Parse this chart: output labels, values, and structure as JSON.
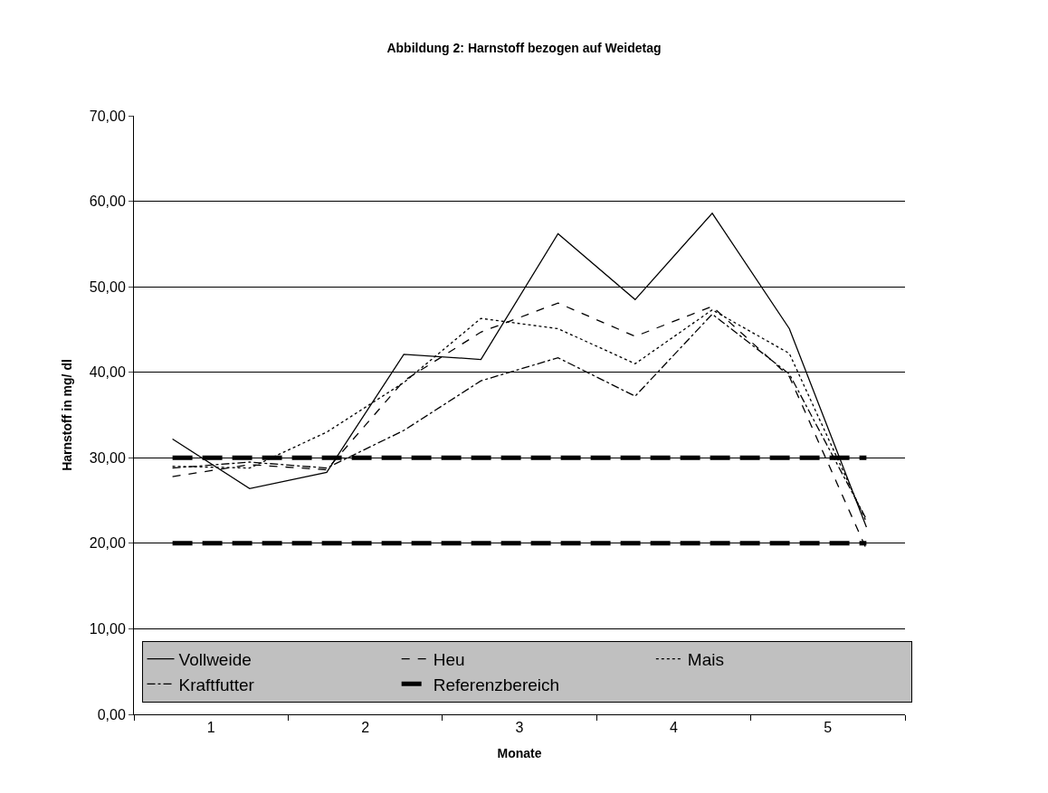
{
  "chart_data": {
    "type": "line",
    "title": "Abbildung 2: Harnstoff bezogen auf Weidetag",
    "xlabel": "Monate",
    "ylabel": "Harnstoff in mg/ dl",
    "x": [
      0.75,
      1.25,
      1.75,
      2.25,
      2.75,
      3.25,
      3.75,
      4.25,
      4.75,
      5.25
    ],
    "xlim": [
      0.5,
      5.5
    ],
    "xticks": [
      {
        "value": 0.5,
        "label": null
      },
      1,
      {
        "value": 1.5,
        "label": null
      },
      2,
      {
        "value": 2.5,
        "label": null
      },
      3,
      {
        "value": 3.5,
        "label": null
      },
      4,
      {
        "value": 4.5,
        "label": null
      },
      5,
      {
        "value": 5.5,
        "label": null
      }
    ],
    "ylim": [
      0,
      70
    ],
    "yticks": [
      {
        "value": 0,
        "label": "0,00"
      },
      {
        "value": 10,
        "label": "10,00"
      },
      {
        "value": 20,
        "label": "20,00"
      },
      {
        "value": 30,
        "label": "30,00"
      },
      {
        "value": 40,
        "label": "40,00"
      },
      {
        "value": 50,
        "label": "50,00"
      },
      {
        "value": 60,
        "label": "60,00"
      },
      {
        "value": 70,
        "label": "70,00"
      }
    ],
    "series": [
      {
        "name": "Vollweide",
        "color": "#000000",
        "line_style": "solid",
        "values": [
          32.2,
          26.4,
          28.3,
          42.1,
          41.5,
          56.2,
          48.5,
          58.6,
          45.1,
          21.9
        ]
      },
      {
        "name": "Heu",
        "color": "#000000",
        "line_style": "longdash",
        "values": [
          27.8,
          29.2,
          28.6,
          39.0,
          44.7,
          48.1,
          44.2,
          47.7,
          39.5,
          19.3
        ]
      },
      {
        "name": "Mais",
        "color": "#000000",
        "line_style": "dotted",
        "values": [
          29.0,
          28.8,
          33.0,
          38.8,
          46.3,
          45.1,
          41.0,
          47.3,
          42.2,
          22.5
        ]
      },
      {
        "name": "Kraftfutter",
        "color": "#000000",
        "line_style": "dashdot",
        "values": [
          28.8,
          29.5,
          28.8,
          33.2,
          39.0,
          41.7,
          37.2,
          46.8,
          39.8,
          22.8
        ]
      },
      {
        "name": "Referenzbereich",
        "color": "#000000",
        "line_style": "dashed",
        "values": [
          30,
          30,
          30,
          30,
          30,
          30,
          30,
          30,
          30,
          30
        ]
      },
      {
        "color": "#000000",
        "line_style": "dashed",
        "values": [
          20,
          20,
          20,
          20,
          20,
          20,
          20,
          20,
          20,
          20
        ]
      }
    ],
    "grid": "y",
    "legend": "bottom"
  }
}
